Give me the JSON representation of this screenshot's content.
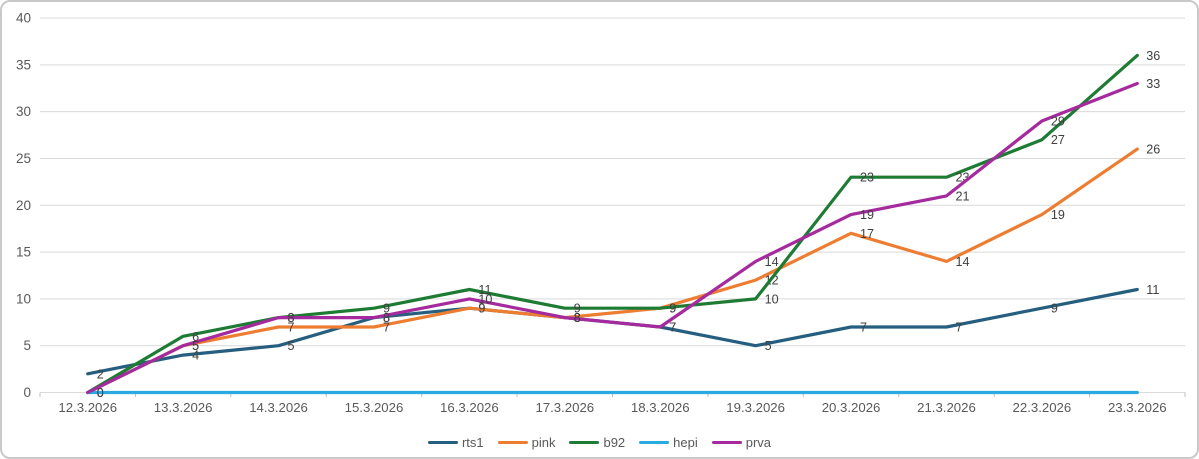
{
  "chart_data": {
    "type": "line",
    "title": "",
    "xlabel": "",
    "ylabel": "",
    "categories": [
      "12.3.2026",
      "13.3.2026",
      "14.3.2026",
      "15.3.2026",
      "16.3.2026",
      "17.3.2026",
      "18.3.2026",
      "19.3.2026",
      "20.3.2026",
      "21.3.2026",
      "22.3.2026",
      "23.3.2026"
    ],
    "series": [
      {
        "name": "rts1",
        "color": "#255E7E",
        "values": [
          2,
          4,
          5,
          8,
          9,
          8,
          7,
          5,
          7,
          7,
          9,
          11
        ],
        "show_labels": true
      },
      {
        "name": "pink",
        "color": "#ED7D31",
        "values": [
          0,
          5,
          7,
          7,
          9,
          8,
          9,
          12,
          17,
          14,
          19,
          26
        ],
        "show_labels": true
      },
      {
        "name": "b92",
        "color": "#1E7B34",
        "values": [
          0,
          6,
          8,
          9,
          11,
          9,
          9,
          10,
          23,
          23,
          27,
          36
        ],
        "show_labels": true
      },
      {
        "name": "hepi",
        "color": "#29ABE2",
        "values": [
          0,
          0,
          0,
          0,
          0,
          0,
          0,
          0,
          0,
          0,
          0,
          0
        ],
        "show_labels": false
      },
      {
        "name": "prva",
        "color": "#A42A9E",
        "values": [
          0,
          5,
          8,
          8,
          10,
          8,
          7,
          14,
          19,
          21,
          29,
          33
        ],
        "show_labels": true
      }
    ],
    "y_axis": {
      "min": 0,
      "max": 40,
      "step": 5,
      "tick_labels": [
        "0",
        "5",
        "10",
        "15",
        "20",
        "25",
        "30",
        "35",
        "40"
      ]
    },
    "grid": true,
    "legend_position": "bottom"
  },
  "colors": {
    "background": "#FFFFFF",
    "frame_border": "#C9C9C9",
    "gridline": "#D9D9D9",
    "axis_tick": "#BFBFBF",
    "axis_label_text": "#595959",
    "data_label_text": "#404040"
  }
}
